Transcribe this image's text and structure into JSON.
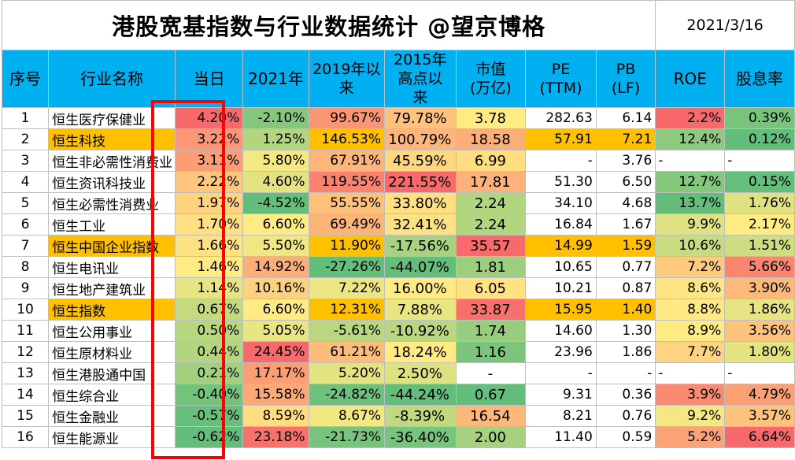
{
  "title": "港股宽基指数与行业数据统计  @望京博格",
  "date": "2021/3/16",
  "headers": [
    [
      "序号"
    ],
    [
      "行业名称"
    ],
    [
      "当日"
    ],
    [
      "2021年"
    ],
    [
      "2019年以",
      "来"
    ],
    [
      "2015年",
      "高点以",
      "来"
    ],
    [
      "市值",
      "(万亿)"
    ],
    [
      "PE",
      "(TTM)"
    ],
    [
      "PB",
      "(LF)"
    ],
    [
      "ROE"
    ],
    [
      "股息率"
    ]
  ],
  "rows": [
    {
      "idx": "1",
      "name": "恒生医疗保健业",
      "day": "4.20%",
      "y2021": "-2.10%",
      "s2019": "99.67%",
      "s2015": "79.78%",
      "cap": "3.78",
      "pe": "282.63",
      "pb": "6.14",
      "roe": "2.2%",
      "div": "0.39%",
      "hl": false
    },
    {
      "idx": "2",
      "name": "恒生科技",
      "day": "3.22%",
      "y2021": "1.25%",
      "s2019": "146.53%",
      "s2015": "100.79%",
      "cap": "18.58",
      "pe": "57.91",
      "pb": "7.21",
      "roe": "12.4%",
      "div": "0.12%",
      "hl": true
    },
    {
      "idx": "3",
      "name": "恒生非必需性消费业",
      "day": "3.11%",
      "y2021": "5.80%",
      "s2019": "67.91%",
      "s2015": "45.59%",
      "cap": "6.99",
      "pe": "-",
      "pb": "3.76",
      "roe": "-",
      "div": "-",
      "hl": false
    },
    {
      "idx": "4",
      "name": "恒生资讯科技业",
      "day": "2.22%",
      "y2021": "4.60%",
      "s2019": "119.55%",
      "s2015": "221.55%",
      "cap": "17.81",
      "pe": "51.30",
      "pb": "6.50",
      "roe": "12.7%",
      "div": "0.15%",
      "hl": false
    },
    {
      "idx": "5",
      "name": "恒生必需性消费业",
      "day": "1.97%",
      "y2021": "-4.52%",
      "s2019": "55.55%",
      "s2015": "33.80%",
      "cap": "2.24",
      "pe": "34.10",
      "pb": "4.68",
      "roe": "13.7%",
      "div": "1.76%",
      "hl": false
    },
    {
      "idx": "6",
      "name": "恒生工业",
      "day": "1.70%",
      "y2021": "6.60%",
      "s2019": "69.49%",
      "s2015": "32.41%",
      "cap": "2.24",
      "pe": "16.84",
      "pb": "1.67",
      "roe": "9.9%",
      "div": "2.17%",
      "hl": false
    },
    {
      "idx": "7",
      "name": "恒生中国企业指数",
      "day": "1.66%",
      "y2021": "5.50%",
      "s2019": "11.90%",
      "s2015": "-17.56%",
      "cap": "35.57",
      "pe": "14.99",
      "pb": "1.59",
      "roe": "10.6%",
      "div": "1.51%",
      "hl": true
    },
    {
      "idx": "8",
      "name": "恒生电讯业",
      "day": "1.46%",
      "y2021": "14.92%",
      "s2019": "-27.26%",
      "s2015": "-44.07%",
      "cap": "1.81",
      "pe": "10.65",
      "pb": "0.77",
      "roe": "7.2%",
      "div": "5.66%",
      "hl": false
    },
    {
      "idx": "9",
      "name": "恒生地产建筑业",
      "day": "1.14%",
      "y2021": "10.16%",
      "s2019": "7.22%",
      "s2015": "16.00%",
      "cap": "6.05",
      "pe": "10.21",
      "pb": "0.87",
      "roe": "8.6%",
      "div": "3.90%",
      "hl": false
    },
    {
      "idx": "10",
      "name": "恒生指数",
      "day": "0.67%",
      "y2021": "6.60%",
      "s2019": "12.31%",
      "s2015": "7.88%",
      "cap": "33.87",
      "pe": "15.95",
      "pb": "1.40",
      "roe": "8.8%",
      "div": "1.86%",
      "hl": true
    },
    {
      "idx": "11",
      "name": "恒生公用事业",
      "day": "0.50%",
      "y2021": "5.05%",
      "s2019": "-5.61%",
      "s2015": "-10.92%",
      "cap": "1.74",
      "pe": "14.60",
      "pb": "1.30",
      "roe": "8.9%",
      "div": "3.56%",
      "hl": false
    },
    {
      "idx": "12",
      "name": "恒生原材料业",
      "day": "0.44%",
      "y2021": "24.45%",
      "s2019": "61.21%",
      "s2015": "18.24%",
      "cap": "1.16",
      "pe": "23.96",
      "pb": "1.86",
      "roe": "7.7%",
      "div": "1.80%",
      "hl": false
    },
    {
      "idx": "13",
      "name": "恒生港股通中国",
      "day": "0.21%",
      "y2021": "17.17%",
      "s2019": "5.20%",
      "s2015": "2.50%",
      "cap": "-",
      "pe": "-",
      "pb": "-",
      "roe": "-",
      "div": "-",
      "hl": false
    },
    {
      "idx": "14",
      "name": "恒生综合业",
      "day": "-0.40%",
      "y2021": "15.58%",
      "s2019": "-24.82%",
      "s2015": "-44.24%",
      "cap": "0.67",
      "pe": "9.31",
      "pb": "0.36",
      "roe": "3.9%",
      "div": "4.79%",
      "hl": false
    },
    {
      "idx": "15",
      "name": "恒生金融业",
      "day": "-0.57%",
      "y2021": "8.59%",
      "s2019": "8.67%",
      "s2015": "-8.39%",
      "cap": "16.54",
      "pe": "8.21",
      "pb": "0.76",
      "roe": "9.2%",
      "div": "3.57%",
      "hl": false
    },
    {
      "idx": "16",
      "name": "恒生能源业",
      "day": "-0.62%",
      "y2021": "23.18%",
      "s2019": "-21.73%",
      "s2015": "-36.40%",
      "cap": "2.00",
      "pe": "11.40",
      "pb": "0.59",
      "roe": "5.2%",
      "div": "6.64%",
      "hl": false
    }
  ],
  "colors": {
    "header": "#00b0f0",
    "highlight": "#ffc000",
    "box": "#ff0000",
    "scale_red": "#f8696b",
    "scale_yellow": "#ffeb84",
    "scale_green": "#63be7b"
  }
}
